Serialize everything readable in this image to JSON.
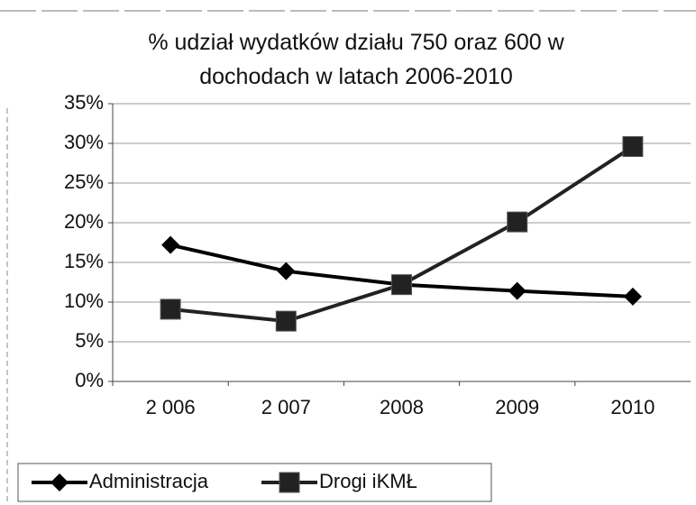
{
  "chart_data": {
    "type": "line",
    "title": "% udział wydatków działu 750 oraz 600 w dochodach w latach 2006-2010",
    "categories": [
      "2 006",
      "2 007",
      "2008",
      "2009",
      "2010"
    ],
    "series": [
      {
        "name": "Administracja",
        "color": "#000000",
        "marker": "diamond",
        "values": [
          17.2,
          13.9,
          12.2,
          11.4,
          10.7
        ]
      },
      {
        "name": "Drogi iKMŁ",
        "color": "#222222",
        "marker": "square",
        "values": [
          9.1,
          7.6,
          12.2,
          20.1,
          29.6
        ]
      }
    ],
    "ylim": [
      0,
      35
    ],
    "yticks": [
      {
        "value": 0,
        "label": "0%"
      },
      {
        "value": 5,
        "label": "5%"
      },
      {
        "value": 10,
        "label": "10%"
      },
      {
        "value": 15,
        "label": "15%"
      },
      {
        "value": 20,
        "label": "20%"
      },
      {
        "value": 25,
        "label": "25%"
      },
      {
        "value": 30,
        "label": "30%"
      },
      {
        "value": 35,
        "label": "35%"
      }
    ],
    "grid": true,
    "legend": "bottom-left"
  }
}
